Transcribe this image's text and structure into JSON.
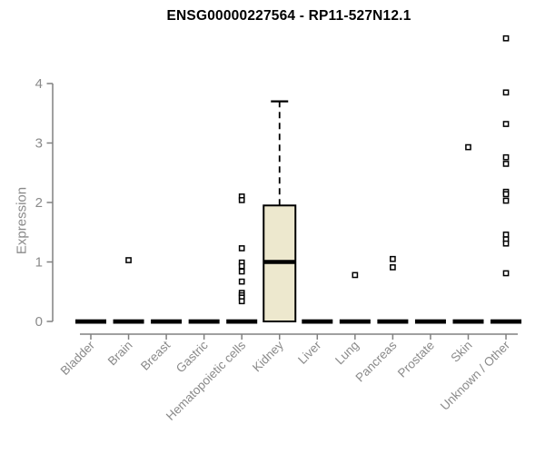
{
  "chart_data": {
    "type": "boxplot",
    "title": "ENSG00000227564 - RP11-527N12.1",
    "ylabel": "Expression",
    "xlabel": "",
    "yticks": [
      0,
      1,
      2,
      3,
      4
    ],
    "ylim": [
      0,
      4.85
    ],
    "grid": false,
    "legend": "none",
    "colors": {
      "box_fill": "#EDE8CE",
      "box_stroke": "#000000",
      "axis_line": "#808080",
      "axis_text": "#8a8a8a",
      "outlier_fill": "#ffffff",
      "outlier_stroke": "#000000"
    },
    "categories": [
      "Bladder",
      "Brain",
      "Breast",
      "Gastric",
      "Hematopoietic cells",
      "Kidney",
      "Liver",
      "Lung",
      "Pancreas",
      "Prostate",
      "Skin",
      "Unknown / Other"
    ],
    "boxes": [
      {
        "category": "Bladder",
        "whisker_low": 0,
        "q1": 0,
        "median": 0,
        "q3": 0,
        "whisker_high": 0,
        "outliers": []
      },
      {
        "category": "Brain",
        "whisker_low": 0,
        "q1": 0,
        "median": 0,
        "q3": 0,
        "whisker_high": 0,
        "outliers": [
          1.03
        ]
      },
      {
        "category": "Breast",
        "whisker_low": 0,
        "q1": 0,
        "median": 0,
        "q3": 0,
        "whisker_high": 0,
        "outliers": []
      },
      {
        "category": "Gastric",
        "whisker_low": 0,
        "q1": 0,
        "median": 0,
        "q3": 0,
        "whisker_high": 0,
        "outliers": []
      },
      {
        "category": "Hematopoietic cells",
        "whisker_low": 0,
        "q1": 0,
        "median": 0,
        "q3": 0,
        "whisker_high": 0,
        "outliers": [
          2.1,
          2.04,
          1.23,
          0.99,
          0.93,
          0.84,
          0.67,
          0.48,
          0.44,
          0.4,
          0.34
        ]
      },
      {
        "category": "Kidney",
        "whisker_low": 0,
        "q1": 0,
        "median": 1.0,
        "q3": 1.95,
        "whisker_high": 3.7,
        "outliers": []
      },
      {
        "category": "Liver",
        "whisker_low": 0,
        "q1": 0,
        "median": 0,
        "q3": 0,
        "whisker_high": 0,
        "outliers": []
      },
      {
        "category": "Lung",
        "whisker_low": 0,
        "q1": 0,
        "median": 0,
        "q3": 0,
        "whisker_high": 0,
        "outliers": [
          0.78
        ]
      },
      {
        "category": "Pancreas",
        "whisker_low": 0,
        "q1": 0,
        "median": 0,
        "q3": 0,
        "whisker_high": 0,
        "outliers": [
          1.05,
          0.91
        ]
      },
      {
        "category": "Prostate",
        "whisker_low": 0,
        "q1": 0,
        "median": 0,
        "q3": 0,
        "whisker_high": 0,
        "outliers": []
      },
      {
        "category": "Skin",
        "whisker_low": 0,
        "q1": 0,
        "median": 0,
        "q3": 0,
        "whisker_high": 0,
        "outliers": [
          2.93
        ]
      },
      {
        "category": "Unknown / Other",
        "whisker_low": 0,
        "q1": 0,
        "median": 0,
        "q3": 0,
        "whisker_high": 0,
        "outliers": [
          4.76,
          3.85,
          3.32,
          2.76,
          2.65,
          2.18,
          2.14,
          2.03,
          1.46,
          1.38,
          1.31,
          0.81
        ]
      }
    ]
  }
}
